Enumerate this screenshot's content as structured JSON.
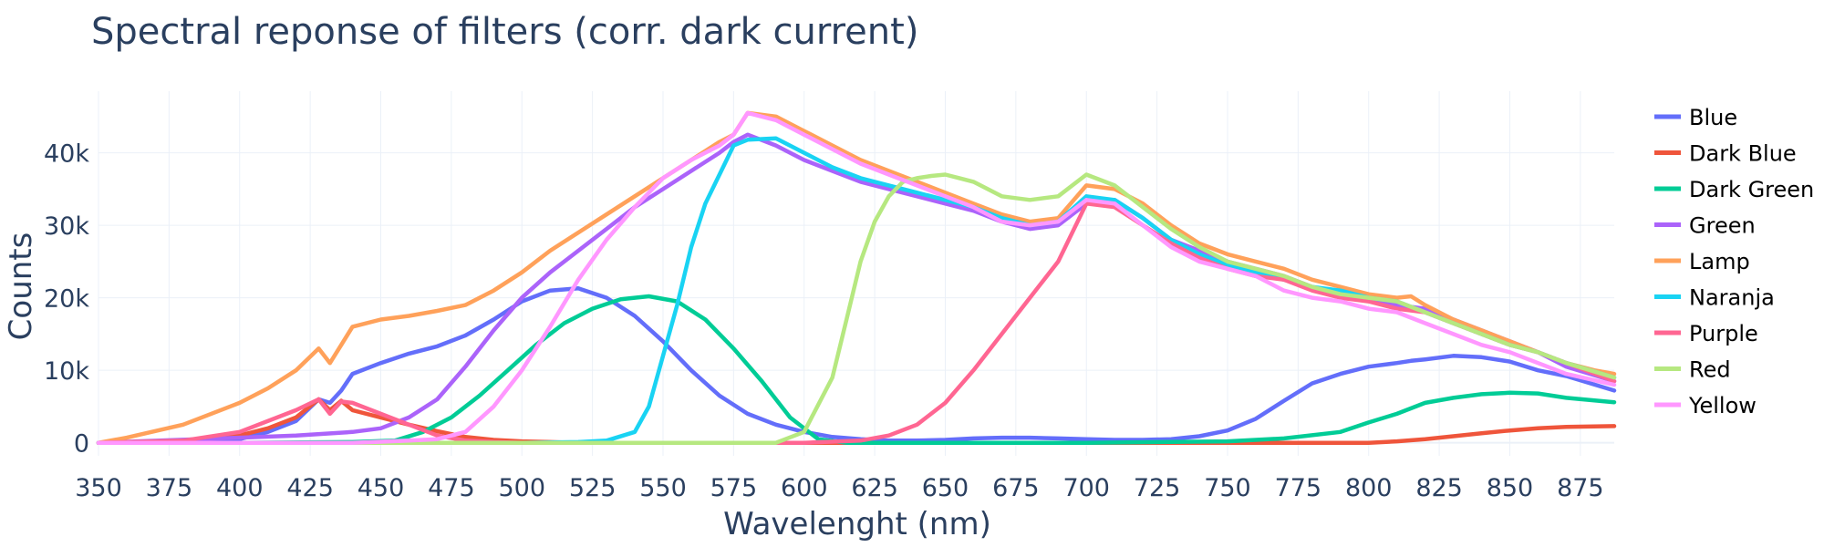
{
  "chart_data": {
    "type": "line",
    "title": "Spectral reponse of filters (corr. dark current)",
    "xlabel": "Wavelenght (nm)",
    "ylabel": "Counts",
    "xlim": [
      350,
      887
    ],
    "ylim": [
      -1800,
      48500
    ],
    "xticks": [
      350,
      375,
      400,
      425,
      450,
      475,
      500,
      525,
      550,
      575,
      600,
      625,
      650,
      675,
      700,
      725,
      750,
      775,
      800,
      825,
      850,
      875
    ],
    "xtick_labels": [
      "350",
      "375",
      "400",
      "425",
      "450",
      "475",
      "500",
      "525",
      "550",
      "575",
      "600",
      "625",
      "650",
      "675",
      "700",
      "725",
      "750",
      "775",
      "800",
      "825",
      "850",
      "875"
    ],
    "yticks": [
      0,
      10000,
      20000,
      30000,
      40000
    ],
    "ytick_labels": [
      "0",
      "10k",
      "20k",
      "30k",
      "40k"
    ],
    "grid": true,
    "legend_position": "right",
    "series": [
      {
        "name": "Blue",
        "color": "#636efa",
        "x": [
          350,
          380,
          400,
          410,
          420,
          428,
          432,
          436,
          440,
          450,
          460,
          470,
          480,
          490,
          500,
          510,
          520,
          530,
          540,
          550,
          560,
          570,
          580,
          590,
          600,
          610,
          620,
          630,
          640,
          650,
          660,
          670,
          680,
          690,
          700,
          710,
          720,
          730,
          740,
          750,
          760,
          770,
          780,
          790,
          800,
          810,
          815,
          820,
          830,
          840,
          850,
          860,
          870,
          887
        ],
        "y": [
          0,
          200,
          500,
          1500,
          3000,
          6000,
          5500,
          7200,
          9500,
          11000,
          12300,
          13300,
          14800,
          17000,
          19500,
          21000,
          21300,
          20000,
          17500,
          14000,
          10000,
          6500,
          4000,
          2500,
          1500,
          800,
          500,
          300,
          300,
          400,
          600,
          700,
          700,
          600,
          500,
          400,
          400,
          500,
          900,
          1700,
          3300,
          5800,
          8200,
          9500,
          10500,
          11000,
          11300,
          11500,
          12000,
          11800,
          11200,
          10000,
          9200,
          7200
        ]
      },
      {
        "name": "Dark Blue",
        "color": "#ef553b",
        "x": [
          350,
          380,
          400,
          410,
          420,
          428,
          432,
          436,
          440,
          450,
          460,
          470,
          480,
          490,
          500,
          510,
          520,
          530,
          540,
          550,
          560,
          600,
          700,
          800,
          810,
          820,
          830,
          840,
          850,
          860,
          870,
          887
        ],
        "y": [
          0,
          200,
          1000,
          2000,
          3500,
          6000,
          4500,
          5800,
          4500,
          3500,
          2500,
          1600,
          800,
          400,
          200,
          100,
          0,
          0,
          0,
          0,
          0,
          0,
          0,
          0,
          200,
          500,
          900,
          1300,
          1700,
          2000,
          2200,
          2300
        ]
      },
      {
        "name": "Dark Green",
        "color": "#00cc96",
        "x": [
          350,
          400,
          440,
          455,
          465,
          475,
          485,
          495,
          505,
          515,
          525,
          535,
          545,
          555,
          565,
          575,
          585,
          595,
          605,
          615,
          630,
          700,
          750,
          770,
          790,
          800,
          810,
          820,
          830,
          840,
          850,
          860,
          870,
          887
        ],
        "y": [
          0,
          0,
          100,
          300,
          1500,
          3500,
          6500,
          10000,
          13500,
          16500,
          18500,
          19800,
          20200,
          19500,
          17000,
          13000,
          8500,
          3500,
          500,
          0,
          0,
          0,
          200,
          600,
          1500,
          2800,
          4000,
          5500,
          6200,
          6700,
          6900,
          6800,
          6200,
          5600
        ]
      },
      {
        "name": "Green",
        "color": "#ab63fa",
        "x": [
          350,
          400,
          420,
          440,
          450,
          460,
          470,
          480,
          490,
          500,
          510,
          520,
          530,
          540,
          550,
          560,
          570,
          575,
          580,
          590,
          600,
          610,
          620,
          630,
          640,
          650,
          660,
          670,
          680,
          690,
          700,
          710,
          720,
          730,
          740,
          750,
          760,
          770,
          780,
          790,
          800,
          810,
          820,
          830,
          840,
          850,
          860,
          870,
          887
        ],
        "y": [
          0,
          700,
          1000,
          1500,
          2000,
          3500,
          6000,
          10500,
          15500,
          20000,
          23500,
          26500,
          29500,
          32500,
          35000,
          37500,
          40000,
          41500,
          42500,
          41000,
          39000,
          37500,
          36000,
          35000,
          34000,
          33000,
          32000,
          30500,
          29500,
          30000,
          33000,
          33500,
          31000,
          28000,
          26500,
          25000,
          24000,
          23000,
          21500,
          20500,
          20000,
          19000,
          18500,
          17000,
          15500,
          14000,
          12500,
          10500,
          8500
        ]
      },
      {
        "name": "Lamp",
        "color": "#ffa15a",
        "x": [
          350,
          360,
          380,
          400,
          410,
          420,
          428,
          432,
          436,
          440,
          450,
          460,
          470,
          480,
          490,
          500,
          510,
          520,
          530,
          540,
          550,
          560,
          570,
          575,
          580,
          590,
          600,
          610,
          620,
          630,
          640,
          650,
          660,
          670,
          680,
          690,
          700,
          710,
          720,
          730,
          740,
          750,
          760,
          770,
          780,
          790,
          800,
          810,
          815,
          820,
          830,
          840,
          850,
          860,
          870,
          880,
          887
        ],
        "y": [
          0,
          700,
          2500,
          5500,
          7500,
          10000,
          13000,
          11000,
          13500,
          16000,
          17000,
          17500,
          18200,
          19000,
          21000,
          23500,
          26500,
          29000,
          31500,
          34000,
          36500,
          39000,
          41500,
          42500,
          45500,
          45000,
          43000,
          41000,
          39000,
          37500,
          36000,
          34500,
          33000,
          31500,
          30500,
          31000,
          35500,
          35000,
          33000,
          30000,
          27500,
          26000,
          25000,
          24000,
          22500,
          21500,
          20500,
          20000,
          20200,
          19000,
          17000,
          15500,
          14000,
          12500,
          11000,
          10000,
          9500
        ]
      },
      {
        "name": "Naranja",
        "color": "#19d3f3",
        "x": [
          350,
          500,
          520,
          530,
          540,
          545,
          550,
          555,
          560,
          565,
          570,
          575,
          580,
          590,
          600,
          610,
          620,
          630,
          640,
          650,
          660,
          670,
          680,
          690,
          700,
          710,
          720,
          730,
          740,
          750,
          760,
          770,
          780,
          790,
          800,
          810,
          820,
          830,
          840,
          850,
          860,
          870,
          887
        ],
        "y": [
          0,
          0,
          100,
          300,
          1500,
          5000,
          12000,
          19000,
          27000,
          33000,
          37000,
          41000,
          41800,
          42000,
          40000,
          38000,
          36500,
          35500,
          34500,
          33500,
          32500,
          31000,
          30000,
          30500,
          34000,
          33500,
          31000,
          28000,
          26000,
          24500,
          23500,
          22500,
          21500,
          21000,
          20000,
          19500,
          18000,
          16500,
          15000,
          13500,
          12500,
          11000,
          9000
        ]
      },
      {
        "name": "Purple",
        "color": "#ff6692",
        "x": [
          350,
          380,
          400,
          420,
          428,
          432,
          436,
          440,
          450,
          460,
          470,
          480,
          490,
          500,
          600,
          620,
          630,
          640,
          650,
          660,
          670,
          680,
          690,
          700,
          710,
          720,
          730,
          740,
          750,
          760,
          770,
          780,
          790,
          800,
          810,
          820,
          830,
          840,
          850,
          860,
          870,
          887
        ],
        "y": [
          0,
          300,
          1500,
          4500,
          6000,
          4000,
          5700,
          5500,
          4000,
          2500,
          1000,
          300,
          100,
          0,
          0,
          300,
          1000,
          2500,
          5500,
          10000,
          15000,
          20000,
          25000,
          33000,
          32500,
          30000,
          27500,
          25500,
          24000,
          23000,
          22500,
          21000,
          20000,
          19500,
          18500,
          18000,
          16500,
          15000,
          13500,
          12500,
          11000,
          8500
        ]
      },
      {
        "name": "Red",
        "color": "#b6e880",
        "x": [
          350,
          590,
          600,
          610,
          615,
          620,
          625,
          630,
          635,
          640,
          645,
          650,
          655,
          660,
          670,
          680,
          690,
          700,
          710,
          720,
          730,
          740,
          750,
          760,
          770,
          780,
          790,
          800,
          810,
          820,
          830,
          840,
          850,
          860,
          870,
          887
        ],
        "y": [
          0,
          0,
          1500,
          9000,
          17000,
          25000,
          30500,
          34000,
          36000,
          36500,
          36800,
          37000,
          36500,
          36000,
          34000,
          33500,
          34000,
          37000,
          35500,
          32500,
          29500,
          27000,
          25000,
          24000,
          23000,
          21500,
          20500,
          20000,
          19500,
          18000,
          16500,
          15000,
          13500,
          12500,
          11000,
          9000
        ]
      },
      {
        "name": "Yellow",
        "color": "#ff97ff",
        "x": [
          350,
          440,
          460,
          470,
          480,
          490,
          500,
          510,
          520,
          530,
          540,
          550,
          560,
          570,
          575,
          580,
          590,
          600,
          610,
          620,
          630,
          640,
          650,
          660,
          670,
          680,
          690,
          700,
          710,
          720,
          730,
          740,
          750,
          760,
          770,
          780,
          790,
          800,
          810,
          820,
          830,
          840,
          850,
          860,
          870,
          887
        ],
        "y": [
          0,
          0,
          300,
          500,
          1500,
          5000,
          10000,
          16000,
          22500,
          28000,
          32500,
          36500,
          39000,
          41000,
          42500,
          45500,
          44500,
          42500,
          40500,
          38500,
          37000,
          35500,
          34000,
          32500,
          30500,
          30000,
          30500,
          33500,
          33000,
          30000,
          27000,
          25000,
          24000,
          23000,
          21000,
          20000,
          19500,
          18500,
          18000,
          16500,
          15000,
          13500,
          12500,
          11000,
          9500,
          8000
        ]
      }
    ]
  }
}
